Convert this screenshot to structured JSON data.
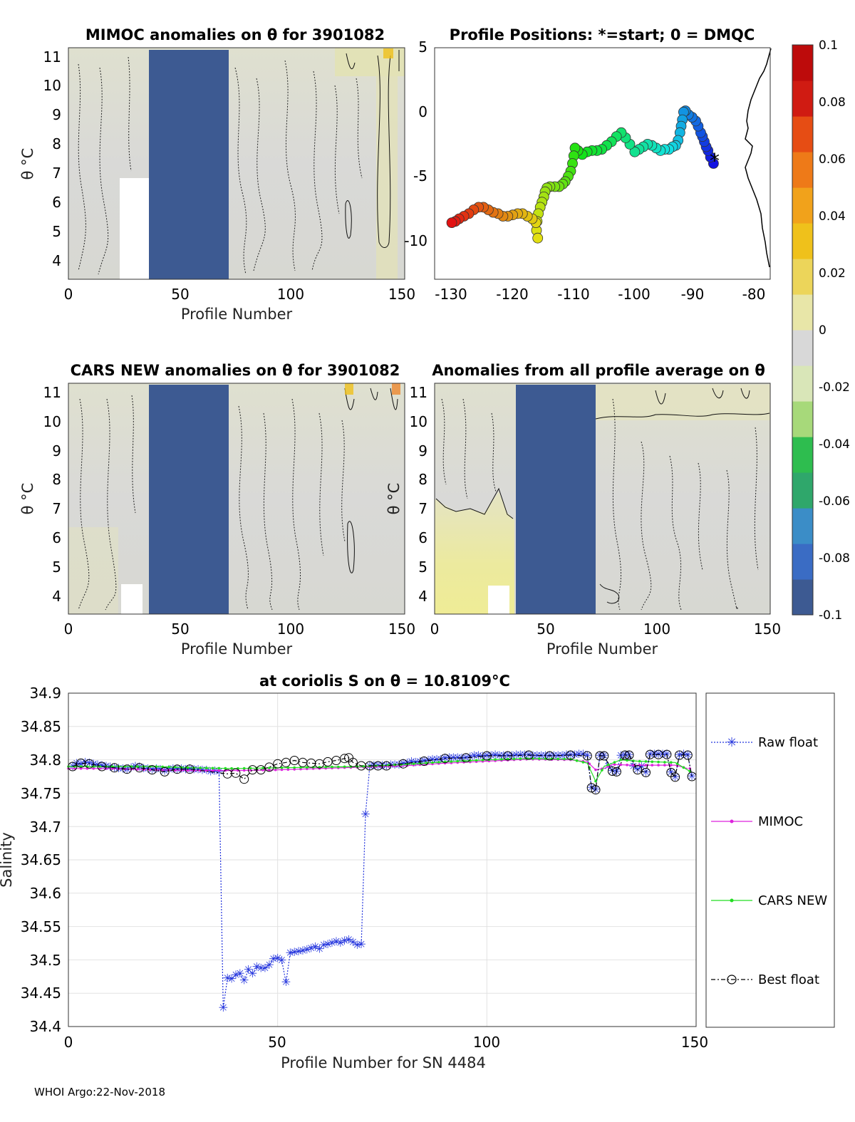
{
  "footer": "WHOI Argo:22-Nov-2018",
  "colorbar": {
    "ticks": [
      "0.1",
      "0.08",
      "0.06",
      "0.04",
      "0.02",
      "0",
      "-0.02",
      "-0.04",
      "-0.06",
      "-0.08",
      "-0.1"
    ],
    "range": [
      -0.1,
      0.1
    ],
    "colors": [
      "#3d5a92",
      "#3a6cc4",
      "#3b8dc7",
      "#2fa76b",
      "#2ebd4f",
      "#a7d97a",
      "#d9e6b8",
      "#d8d8d8",
      "#e8e6a8",
      "#ecd55a",
      "#efc11b",
      "#f1a21b",
      "#ee7a18",
      "#e64d14",
      "#d01b12",
      "#bd0b0b"
    ]
  },
  "chart_data": [
    {
      "type": "heatmap",
      "title": "MIMOC anomalies on θ  for 3901082",
      "xlabel": "Profile Number",
      "ylabel": "θ °C",
      "xticks": [
        "0",
        "50",
        "100",
        "150"
      ],
      "yticks": [
        "4",
        "5",
        "6",
        "7",
        "8",
        "9",
        "10",
        "11"
      ],
      "xlim": [
        0,
        150
      ],
      "ylim": [
        3.4,
        11.3
      ],
      "missing_block": {
        "x": [
          36,
          72
        ],
        "value": -0.1
      },
      "background_anomaly": 0.0
    },
    {
      "type": "scatter",
      "title": "Profile Positions: *=start; 0 = DMQC",
      "xticks": [
        "-130",
        "-120",
        "-110",
        "-100",
        "-90",
        "-80"
      ],
      "yticks": [
        "5",
        "0",
        "-5",
        "-10"
      ],
      "xlim": [
        -132,
        -77
      ],
      "ylim": [
        -13,
        5
      ],
      "track_lon": [
        -86.3,
        -86.8,
        -87.2,
        -87.5,
        -87.8,
        -88.1,
        -88.4,
        -88.8,
        -89.2,
        -89.8,
        -90.4,
        -90.9,
        -91.2,
        -91.4,
        -91.6,
        -91.8,
        -92.1,
        -92.5,
        -93.0,
        -93.6,
        -94.3,
        -95.0,
        -95.7,
        -96.4,
        -97.1,
        -97.8,
        -98.5,
        -99.2,
        -100.0,
        -100.7,
        -101.4,
        -102.2,
        -103.0,
        -103.8,
        -104.6,
        -105.4,
        -106.2,
        -107.0,
        -107.8,
        -108.5,
        -109.0,
        -109.2,
        -109.4,
        -109.7,
        -110.1,
        -110.6,
        -111.0,
        -111.6,
        -112.3,
        -113.1,
        -113.6,
        -113.9,
        -114.1,
        -114.4,
        -114.7,
        -115.0,
        -115.2,
        -115.3,
        -115.1,
        -115.4,
        -116.0,
        -116.8,
        -117.6,
        -118.4,
        -119.2,
        -120.0,
        -120.8,
        -121.6,
        -122.4,
        -123.2,
        -124.0,
        -124.8,
        -125.6,
        -126.4,
        -127.2,
        -128.0,
        -128.6,
        -129.2
      ],
      "track_lat": [
        -4.0,
        -3.5,
        -3.0,
        -2.7,
        -2.3,
        -1.9,
        -1.6,
        -1.1,
        -0.7,
        -0.4,
        -0.2,
        0.1,
        0.0,
        -0.6,
        -1.1,
        -1.6,
        -2.2,
        -2.6,
        -2.7,
        -2.9,
        -2.9,
        -3.0,
        -2.8,
        -2.6,
        -2.5,
        -2.7,
        -2.9,
        -3.1,
        -2.5,
        -2.0,
        -1.6,
        -1.9,
        -2.3,
        -2.6,
        -2.9,
        -3.0,
        -3.0,
        -3.1,
        -3.3,
        -3.0,
        -2.8,
        -3.4,
        -4.0,
        -4.6,
        -5.0,
        -5.4,
        -5.6,
        -5.8,
        -5.8,
        -5.8,
        -5.9,
        -6.2,
        -6.6,
        -7.0,
        -7.4,
        -7.9,
        -8.5,
        -9.2,
        -9.8,
        -8.6,
        -8.3,
        -8.1,
        -7.9,
        -7.9,
        -8.0,
        -8.1,
        -8.1,
        -7.9,
        -7.8,
        -7.6,
        -7.4,
        -7.4,
        -7.6,
        -7.9,
        -8.1,
        -8.3,
        -8.5,
        -8.6
      ],
      "coastline_lon_approx": -80
    },
    {
      "type": "heatmap",
      "title": "CARS NEW anomalies on θ for 3901082",
      "xlabel": "Profile Number",
      "ylabel": "θ °C",
      "xticks": [
        "0",
        "50",
        "100",
        "150"
      ],
      "yticks": [
        "4",
        "5",
        "6",
        "7",
        "8",
        "9",
        "10",
        "11"
      ],
      "xlim": [
        0,
        150
      ],
      "ylim": [
        3.4,
        11.3
      ],
      "missing_block": {
        "x": [
          36,
          72
        ],
        "value": -0.1
      }
    },
    {
      "type": "heatmap",
      "title": "Anomalies from all profile average on θ",
      "xlabel": "Profile Number",
      "ylabel": "θ °C",
      "xticks": [
        "0",
        "50",
        "100",
        "150"
      ],
      "yticks": [
        "4",
        "5",
        "6",
        "7",
        "8",
        "9",
        "10",
        "11"
      ],
      "xlim": [
        0,
        150
      ],
      "ylim": [
        3.4,
        11.3
      ],
      "missing_block": {
        "x": [
          36,
          72
        ],
        "value": -0.1
      },
      "warm_region": {
        "x": [
          0,
          35
        ],
        "value": 0.02
      }
    },
    {
      "type": "line",
      "title": "at coriolis S on θ = 10.8109°C",
      "xlabel": "Profile Number for SN 4484",
      "ylabel": "Salinity",
      "xticks": [
        "0",
        "50",
        "100",
        "150"
      ],
      "yticks": [
        "34.4",
        "34.45",
        "34.5",
        "34.55",
        "34.6",
        "34.65",
        "34.7",
        "34.75",
        "34.8",
        "34.85",
        "34.9"
      ],
      "xlim": [
        0,
        150
      ],
      "ylim": [
        34.4,
        34.9
      ],
      "grid": true,
      "legend": [
        "Raw float",
        "MIMOC",
        "CARS NEW",
        "Best float"
      ],
      "raw_float": [
        [
          1,
          34.79
        ],
        [
          2,
          34.794
        ],
        [
          3,
          34.793
        ],
        [
          4,
          34.796
        ],
        [
          5,
          34.795
        ],
        [
          6,
          34.793
        ],
        [
          7,
          34.792
        ],
        [
          8,
          34.791
        ],
        [
          9,
          34.79
        ],
        [
          10,
          34.789
        ],
        [
          11,
          34.788
        ],
        [
          12,
          34.787
        ],
        [
          13,
          34.786
        ],
        [
          14,
          34.785
        ],
        [
          15,
          34.788
        ],
        [
          16,
          34.79
        ],
        [
          17,
          34.789
        ],
        [
          18,
          34.787
        ],
        [
          19,
          34.786
        ],
        [
          20,
          34.785
        ],
        [
          21,
          34.786
        ],
        [
          22,
          34.785
        ],
        [
          23,
          34.783
        ],
        [
          24,
          34.785
        ],
        [
          25,
          34.786
        ],
        [
          26,
          34.785
        ],
        [
          27,
          34.786
        ],
        [
          28,
          34.785
        ],
        [
          29,
          34.786
        ],
        [
          30,
          34.785
        ],
        [
          31,
          34.785
        ],
        [
          32,
          34.784
        ],
        [
          33,
          34.784
        ],
        [
          34,
          34.782
        ],
        [
          35,
          34.783
        ],
        [
          36,
          34.782
        ],
        [
          37,
          34.428
        ],
        [
          38,
          34.472
        ],
        [
          39,
          34.471
        ],
        [
          40,
          34.477
        ],
        [
          41,
          34.479
        ],
        [
          42,
          34.469
        ],
        [
          43,
          34.485
        ],
        [
          44,
          34.479
        ],
        [
          45,
          34.489
        ],
        [
          46,
          34.487
        ],
        [
          47,
          34.487
        ],
        [
          48,
          34.492
        ],
        [
          49,
          34.501
        ],
        [
          50,
          34.502
        ],
        [
          51,
          34.499
        ],
        [
          52,
          34.466
        ],
        [
          53,
          34.51
        ],
        [
          54,
          34.511
        ],
        [
          55,
          34.512
        ],
        [
          56,
          34.513
        ],
        [
          57,
          34.515
        ],
        [
          58,
          34.517
        ],
        [
          59,
          34.519
        ],
        [
          60,
          34.516
        ],
        [
          61,
          34.522
        ],
        [
          62,
          34.523
        ],
        [
          63,
          34.525
        ],
        [
          64,
          34.527
        ],
        [
          65,
          34.525
        ],
        [
          66,
          34.528
        ],
        [
          67,
          34.53
        ],
        [
          68,
          34.526
        ],
        [
          69,
          34.522
        ],
        [
          70,
          34.523
        ],
        [
          71,
          34.718
        ],
        [
          72,
          34.79
        ],
        [
          73,
          34.791
        ],
        [
          74,
          34.791
        ],
        [
          75,
          34.791
        ],
        [
          76,
          34.791
        ],
        [
          77,
          34.792
        ],
        [
          78,
          34.792
        ],
        [
          79,
          34.792
        ],
        [
          80,
          34.794
        ],
        [
          81,
          34.795
        ],
        [
          82,
          34.797
        ],
        [
          83,
          34.796
        ],
        [
          84,
          34.797
        ],
        [
          85,
          34.798
        ],
        [
          86,
          34.799
        ],
        [
          87,
          34.8
        ],
        [
          88,
          34.8
        ],
        [
          89,
          34.8
        ],
        [
          90,
          34.802
        ],
        [
          91,
          34.803
        ],
        [
          92,
          34.803
        ],
        [
          93,
          34.803
        ],
        [
          94,
          34.802
        ],
        [
          95,
          34.803
        ],
        [
          96,
          34.804
        ],
        [
          97,
          34.806
        ],
        [
          98,
          34.806
        ],
        [
          99,
          34.805
        ],
        [
          100,
          34.806
        ],
        [
          101,
          34.806
        ],
        [
          102,
          34.807
        ],
        [
          103,
          34.806
        ],
        [
          104,
          34.806
        ],
        [
          105,
          34.806
        ],
        [
          106,
          34.806
        ],
        [
          107,
          34.807
        ],
        [
          108,
          34.807
        ],
        [
          109,
          34.807
        ],
        [
          110,
          34.807
        ],
        [
          111,
          34.806
        ],
        [
          112,
          34.806
        ],
        [
          113,
          34.806
        ],
        [
          114,
          34.806
        ],
        [
          115,
          34.806
        ],
        [
          116,
          34.806
        ],
        [
          117,
          34.806
        ],
        [
          118,
          34.806
        ],
        [
          119,
          34.807
        ],
        [
          120,
          34.807
        ],
        [
          121,
          34.807
        ],
        [
          122,
          34.808
        ],
        [
          123,
          34.808
        ],
        [
          124,
          34.806
        ],
        [
          125,
          34.758
        ],
        [
          126,
          34.755
        ],
        [
          127,
          34.806
        ],
        [
          128,
          34.806
        ],
        [
          129,
          34.79
        ],
        [
          130,
          34.783
        ],
        [
          131,
          34.782
        ],
        [
          132,
          34.806
        ],
        [
          133,
          34.807
        ],
        [
          134,
          34.807
        ],
        [
          135,
          34.79
        ],
        [
          136,
          34.785
        ],
        [
          137,
          34.79
        ],
        [
          138,
          34.781
        ],
        [
          139,
          34.808
        ],
        [
          140,
          34.808
        ],
        [
          141,
          34.808
        ],
        [
          142,
          34.808
        ],
        [
          143,
          34.808
        ],
        [
          144,
          34.781
        ],
        [
          145,
          34.774
        ],
        [
          146,
          34.807
        ],
        [
          147,
          34.808
        ],
        [
          148,
          34.807
        ],
        [
          149,
          34.775
        ]
      ],
      "mimoc": [
        [
          0,
          34.787
        ],
        [
          10,
          34.787
        ],
        [
          20,
          34.785
        ],
        [
          30,
          34.784
        ],
        [
          40,
          34.784
        ],
        [
          50,
          34.785
        ],
        [
          60,
          34.787
        ],
        [
          70,
          34.789
        ],
        [
          80,
          34.791
        ],
        [
          90,
          34.795
        ],
        [
          100,
          34.798
        ],
        [
          110,
          34.801
        ],
        [
          120,
          34.8
        ],
        [
          124,
          34.797
        ],
        [
          126,
          34.785
        ],
        [
          128,
          34.787
        ],
        [
          130,
          34.793
        ],
        [
          135,
          34.792
        ],
        [
          140,
          34.792
        ],
        [
          145,
          34.792
        ],
        [
          148,
          34.787
        ]
      ],
      "cars_new": [
        [
          0,
          34.79
        ],
        [
          10,
          34.79
        ],
        [
          20,
          34.79
        ],
        [
          30,
          34.788
        ],
        [
          40,
          34.787
        ],
        [
          50,
          34.788
        ],
        [
          60,
          34.789
        ],
        [
          70,
          34.79
        ],
        [
          80,
          34.793
        ],
        [
          90,
          34.797
        ],
        [
          100,
          34.8
        ],
        [
          110,
          34.802
        ],
        [
          120,
          34.801
        ],
        [
          124,
          34.795
        ],
        [
          126,
          34.768
        ],
        [
          128,
          34.79
        ],
        [
          132,
          34.8
        ],
        [
          136,
          34.798
        ],
        [
          140,
          34.797
        ],
        [
          145,
          34.796
        ],
        [
          149,
          34.781
        ]
      ],
      "best_float": [
        [
          1,
          34.79
        ],
        [
          3,
          34.795
        ],
        [
          5,
          34.794
        ],
        [
          8,
          34.79
        ],
        [
          11,
          34.788
        ],
        [
          14,
          34.786
        ],
        [
          17,
          34.788
        ],
        [
          20,
          34.785
        ],
        [
          23,
          34.782
        ],
        [
          26,
          34.786
        ],
        [
          29,
          34.786
        ],
        [
          38,
          34.779
        ],
        [
          40,
          34.78
        ],
        [
          42,
          34.771
        ],
        [
          44,
          34.785
        ],
        [
          46,
          34.785
        ],
        [
          48,
          34.789
        ],
        [
          50,
          34.794
        ],
        [
          52,
          34.796
        ],
        [
          54,
          34.799
        ],
        [
          56,
          34.796
        ],
        [
          58,
          34.795
        ],
        [
          60,
          34.794
        ],
        [
          62,
          34.797
        ],
        [
          64,
          34.799
        ],
        [
          66,
          34.802
        ],
        [
          67,
          34.803
        ],
        [
          68,
          34.796
        ],
        [
          70,
          34.791
        ],
        [
          72,
          34.791
        ],
        [
          74,
          34.791
        ],
        [
          76,
          34.791
        ],
        [
          80,
          34.794
        ],
        [
          85,
          34.798
        ],
        [
          90,
          34.802
        ],
        [
          95,
          34.803
        ],
        [
          100,
          34.806
        ],
        [
          105,
          34.806
        ],
        [
          110,
          34.807
        ],
        [
          115,
          34.806
        ],
        [
          120,
          34.807
        ],
        [
          124,
          34.806
        ],
        [
          125,
          34.758
        ],
        [
          126,
          34.755
        ],
        [
          127,
          34.806
        ],
        [
          128,
          34.806
        ],
        [
          130,
          34.783
        ],
        [
          131,
          34.782
        ],
        [
          133,
          34.807
        ],
        [
          134,
          34.807
        ],
        [
          136,
          34.785
        ],
        [
          138,
          34.781
        ],
        [
          139,
          34.808
        ],
        [
          141,
          34.808
        ],
        [
          143,
          34.808
        ],
        [
          144,
          34.781
        ],
        [
          145,
          34.774
        ],
        [
          146,
          34.807
        ],
        [
          148,
          34.807
        ],
        [
          149,
          34.775
        ]
      ]
    }
  ]
}
